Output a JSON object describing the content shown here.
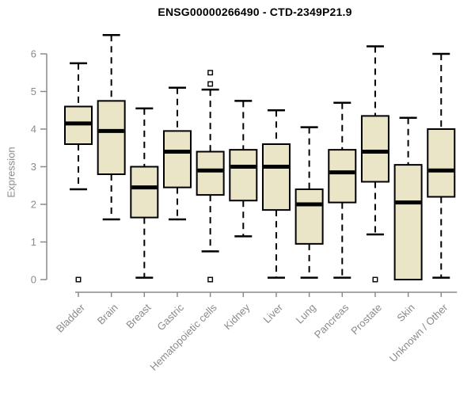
{
  "chart_data": {
    "type": "boxplot",
    "title": "ENSG00000266490 - CTD-2349P21.9",
    "ylabel": "Expression",
    "xlabel": "",
    "ylim": [
      0,
      6.6
    ],
    "yticks": [
      0,
      1,
      2,
      3,
      4,
      5,
      6
    ],
    "grid": false,
    "legend": "none",
    "categories": [
      "Bladder",
      "Brain",
      "Breast",
      "Gastric",
      "Hematopoietic cells",
      "Kidney",
      "Liver",
      "Lung",
      "Pancreas",
      "Prostate",
      "Skin",
      "Unknown / Other"
    ],
    "boxes": [
      {
        "category": "Bladder",
        "whisker_low": 2.4,
        "q1": 3.6,
        "median": 4.15,
        "q3": 4.6,
        "whisker_high": 5.75,
        "outliers": [
          0
        ]
      },
      {
        "category": "Brain",
        "whisker_low": 1.6,
        "q1": 2.8,
        "median": 3.95,
        "q3": 4.75,
        "whisker_high": 6.5,
        "outliers": []
      },
      {
        "category": "Breast",
        "whisker_low": 0.05,
        "q1": 1.65,
        "median": 2.45,
        "q3": 3.0,
        "whisker_high": 4.55,
        "outliers": []
      },
      {
        "category": "Gastric",
        "whisker_low": 1.6,
        "q1": 2.45,
        "median": 3.4,
        "q3": 3.95,
        "whisker_high": 5.1,
        "outliers": []
      },
      {
        "category": "Hematopoietic cells",
        "whisker_low": 0.75,
        "q1": 2.25,
        "median": 2.9,
        "q3": 3.4,
        "whisker_high": 5.05,
        "outliers": [
          5.5,
          5.2,
          0
        ]
      },
      {
        "category": "Kidney",
        "whisker_low": 1.15,
        "q1": 2.1,
        "median": 3.0,
        "q3": 3.45,
        "whisker_high": 4.75,
        "outliers": []
      },
      {
        "category": "Liver",
        "whisker_low": 0.05,
        "q1": 1.85,
        "median": 3.0,
        "q3": 3.6,
        "whisker_high": 4.5,
        "outliers": []
      },
      {
        "category": "Lung",
        "whisker_low": 0.05,
        "q1": 0.95,
        "median": 2.0,
        "q3": 2.4,
        "whisker_high": 4.05,
        "outliers": []
      },
      {
        "category": "Pancreas",
        "whisker_low": 0.05,
        "q1": 2.05,
        "median": 2.85,
        "q3": 3.45,
        "whisker_high": 4.7,
        "outliers": []
      },
      {
        "category": "Prostate",
        "whisker_low": 1.2,
        "q1": 2.6,
        "median": 3.4,
        "q3": 4.35,
        "whisker_high": 6.2,
        "outliers": [
          0
        ]
      },
      {
        "category": "Skin",
        "whisker_low": 0.0,
        "q1": 0.0,
        "median": 2.05,
        "q3": 3.05,
        "whisker_high": 4.3,
        "outliers": []
      },
      {
        "category": "Unknown / Other",
        "whisker_low": 0.05,
        "q1": 2.2,
        "median": 2.9,
        "q3": 4.0,
        "whisker_high": 6.0,
        "outliers": []
      }
    ],
    "colors": {
      "box_fill": "#ebe5c8",
      "box_border": "#000000",
      "median": "#000000",
      "whisker": "#000000",
      "outlier": "#000000",
      "axis": "#8a8a8a",
      "tick_label": "#8a8a8a",
      "title": "#000000"
    }
  }
}
